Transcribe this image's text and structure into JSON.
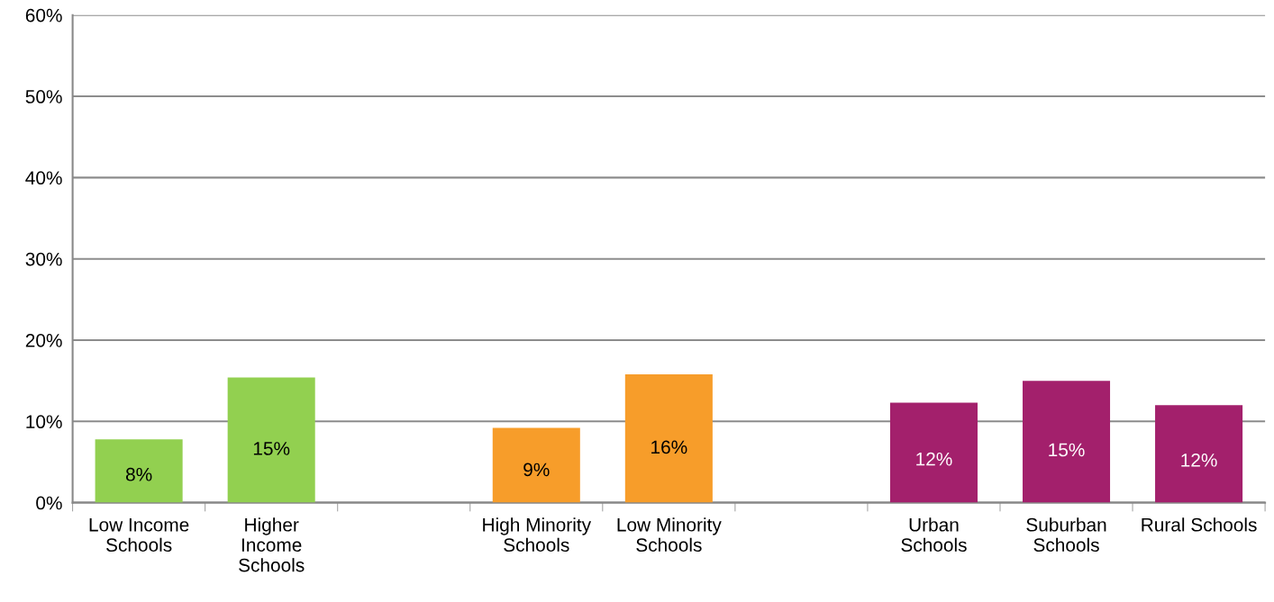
{
  "chart_data": {
    "type": "bar",
    "categories": [
      "Low Income\nSchools",
      "Higher\nIncome\nSchools",
      null,
      "High Minority\nSchools",
      "Low Minority\nSchools",
      null,
      "Urban\nSchools",
      "Suburban\nSchools",
      "Rural Schools"
    ],
    "values": [
      7.8,
      15.4,
      null,
      9.2,
      15.8,
      null,
      12.3,
      15.0,
      12.0
    ],
    "colors": [
      "#92d050",
      "#92d050",
      null,
      "#f79d2a",
      "#f79d2a",
      null,
      "#a3206c",
      "#a3206c",
      "#a3206c"
    ],
    "value_labels": [
      "8%",
      "15%",
      null,
      "9%",
      "16%",
      null,
      "12%",
      "15%",
      "12%"
    ],
    "ylim": [
      0,
      60
    ],
    "yticks": [
      {
        "value": 0,
        "label": "0%"
      },
      {
        "value": 10,
        "label": "10%"
      },
      {
        "value": 20,
        "label": "20%"
      },
      {
        "value": 30,
        "label": "30%"
      },
      {
        "value": 40,
        "label": "40%"
      },
      {
        "value": 50,
        "label": "50%"
      },
      {
        "value": 60,
        "label": "60%"
      }
    ],
    "grid": "y"
  }
}
